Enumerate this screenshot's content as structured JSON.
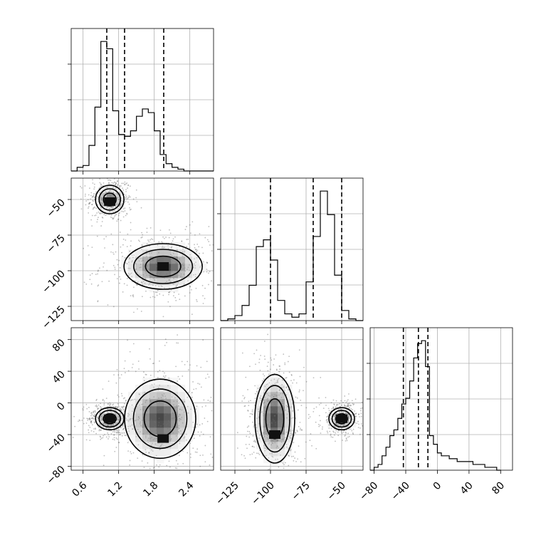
{
  "chart_data": {
    "type": "corner",
    "title": "",
    "parameters": [
      "",
      "",
      ""
    ],
    "quantile_levels": [
      0.16,
      0.5,
      0.84
    ],
    "grid": true,
    "diagonal": [
      {
        "type": "histogram",
        "bin_edges": [
          0.4,
          0.5,
          0.6,
          0.7,
          0.8,
          0.9,
          1.0,
          1.1,
          1.2,
          1.3,
          1.4,
          1.5,
          1.6,
          1.7,
          1.8,
          1.9,
          2.0,
          2.1,
          2.2,
          2.3,
          2.4,
          2.5,
          2.6,
          2.7,
          2.8
        ],
        "counts": [
          0,
          2,
          3,
          14,
          35,
          71,
          67,
          33,
          20,
          19,
          22,
          30,
          34,
          32,
          22,
          9,
          4,
          2,
          1,
          0,
          0,
          0,
          0,
          0
        ],
        "quantiles": [
          1.0,
          1.3,
          1.96
        ],
        "xlim": [
          0.4,
          2.8
        ],
        "xticks": [
          "0.6",
          "1.2",
          "1.8",
          "2.4"
        ]
      },
      {
        "type": "histogram",
        "bin_edges": [
          -135,
          -130,
          -125,
          -120,
          -115,
          -110,
          -105,
          -100,
          -95,
          -90,
          -85,
          -80,
          -75,
          -70,
          -65,
          -60,
          -55,
          -50,
          -45,
          -40,
          -35
        ],
        "counts": [
          0,
          1,
          3,
          9,
          21,
          44,
          48,
          36,
          12,
          4,
          2,
          4,
          23,
          50,
          77,
          63,
          27,
          6,
          1,
          0
        ],
        "quantiles": [
          -100,
          -70,
          -50
        ],
        "xlim": [
          -135,
          -35
        ],
        "xticks": [
          "−125",
          "−100",
          "−75",
          "−50"
        ]
      },
      {
        "type": "histogram",
        "bin_edges": [
          -85,
          -80,
          -75,
          -70,
          -65,
          -60,
          -55,
          -50,
          -45,
          -40,
          -35,
          -30,
          -25,
          -20,
          -15,
          -10,
          -5,
          0,
          5,
          10,
          15,
          20,
          25,
          30,
          35,
          40,
          45,
          50,
          55,
          60,
          65,
          70,
          75,
          80
        ],
        "counts": [
          0,
          1,
          2,
          5,
          8,
          12,
          14,
          18,
          23,
          25,
          31,
          39,
          44,
          45,
          36,
          12,
          9,
          6,
          5,
          5,
          4,
          4,
          3,
          3,
          3,
          3,
          2,
          2,
          2,
          1,
          1,
          1,
          0
        ],
        "quantiles": [
          -43,
          -24,
          -12
        ],
        "xlim": [
          -85,
          95
        ],
        "xticks": [
          "−80",
          "−40",
          "0",
          "40",
          "80"
        ]
      }
    ],
    "off_diagonal": [
      {
        "x_param": 0,
        "y_param": 1,
        "xlim": [
          0.4,
          2.8
        ],
        "ylim": [
          -135,
          -35
        ],
        "yticks": [
          "−50",
          "−75",
          "−100",
          "−125"
        ],
        "clusters": [
          {
            "cx": 1.05,
            "cy": -50,
            "sx": 0.12,
            "sy": 5,
            "weight": 0.45,
            "peak_cells": [
              [
                1.05,
                -51.5
              ]
            ]
          },
          {
            "cx": 1.95,
            "cy": -97,
            "sx": 0.33,
            "sy": 8,
            "weight": 0.55,
            "peak_cells": [
              [
                1.95,
                -97
              ]
            ]
          }
        ]
      },
      {
        "x_param": 0,
        "y_param": 2,
        "xlim": [
          0.4,
          2.8
        ],
        "ylim": [
          -85,
          95
        ],
        "yticks": [
          "80",
          "40",
          "0",
          "−40",
          "−80"
        ],
        "clusters": [
          {
            "cx": 1.05,
            "cy": -20,
            "sx": 0.12,
            "sy": 7,
            "weight": 0.45,
            "peak_cells": [
              [
                1.05,
                -20
              ]
            ]
          },
          {
            "cx": 1.9,
            "cy": -20,
            "sx": 0.3,
            "sy": 25,
            "weight": 0.55,
            "peak_cells": [
              [
                1.95,
                -45
              ]
            ]
          }
        ]
      },
      {
        "x_param": 1,
        "y_param": 2,
        "xlim": [
          -135,
          -35
        ],
        "ylim": [
          -85,
          95
        ],
        "clusters": [
          {
            "cx": -97,
            "cy": -20,
            "sx": 7,
            "sy": 28,
            "weight": 0.55,
            "peak_cells": [
              [
                -97,
                -40
              ]
            ]
          },
          {
            "cx": -50,
            "cy": -20,
            "sx": 4.5,
            "sy": 7,
            "weight": 0.45,
            "peak_cells": [
              [
                -50,
                -20
              ]
            ]
          }
        ]
      }
    ]
  }
}
